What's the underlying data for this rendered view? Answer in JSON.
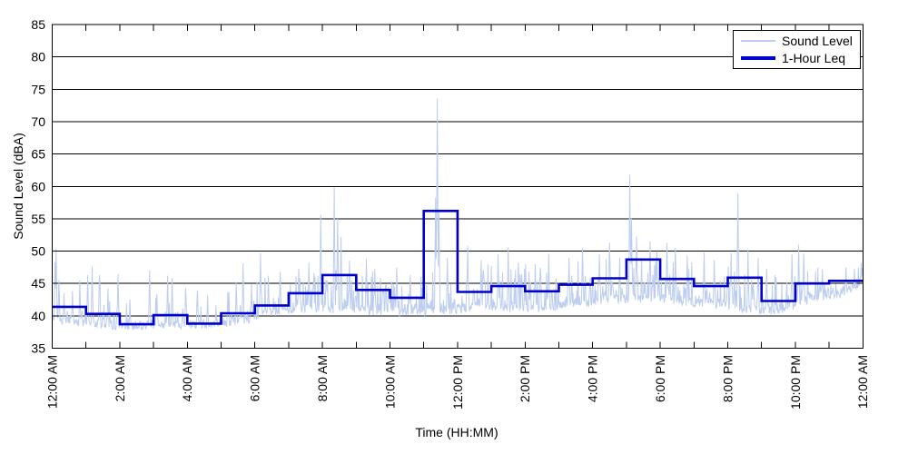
{
  "chart_data": {
    "type": "line",
    "title": "",
    "xlabel": "Time (HH:MM)",
    "ylabel": "Sound Level (dBA)",
    "ylim": [
      35,
      85
    ],
    "xlim_hours": [
      0,
      24
    ],
    "y_ticks": [
      35,
      40,
      45,
      50,
      55,
      60,
      65,
      70,
      75,
      80,
      85
    ],
    "x_major_tick_interval_hours": 2,
    "x_minor_tick_interval_hours": 1,
    "x_major_tick_labels": [
      "12:00 AM",
      "2:00 AM",
      "4:00 AM",
      "6:00 AM",
      "8:00 AM",
      "10:00 AM",
      "12:00 PM",
      "2:00 PM",
      "4:00 PM",
      "6:00 PM",
      "8:00 PM",
      "10:00 PM",
      "12:00 AM"
    ],
    "grid": "horizontal-only",
    "legend_position": "top-right",
    "colors": {
      "sound_level_trace": "#bccdf0",
      "one_hour_leq": "#0000cc",
      "axis": "#000000",
      "background": "#ffffff"
    },
    "series": [
      {
        "name": "Sound Level",
        "type": "noisy-trace",
        "samples_per_hour": 60,
        "baseline_curve": [
          [
            0,
            38.9
          ],
          [
            0.5,
            38.6
          ],
          [
            1,
            38.3
          ],
          [
            1.5,
            38.1
          ],
          [
            2,
            37.8
          ],
          [
            3,
            37.9
          ],
          [
            4,
            37.8
          ],
          [
            5,
            38.2
          ],
          [
            5.8,
            38.8
          ],
          [
            6.3,
            39.5
          ],
          [
            7,
            40.3
          ],
          [
            8,
            40.4
          ],
          [
            9,
            40.2
          ],
          [
            10,
            39.8
          ],
          [
            11,
            39.9
          ],
          [
            12,
            40.3
          ],
          [
            13,
            40.8
          ],
          [
            14,
            40.3
          ],
          [
            15,
            40.8
          ],
          [
            16,
            41.3
          ],
          [
            17,
            41.9
          ],
          [
            18,
            41.9
          ],
          [
            19,
            41.3
          ],
          [
            20,
            40.9
          ],
          [
            21,
            39.9
          ],
          [
            21.5,
            40.3
          ],
          [
            22,
            40.9
          ],
          [
            22.5,
            42.0
          ],
          [
            23,
            42.6
          ],
          [
            23.2,
            42.4
          ],
          [
            23.6,
            43.4
          ],
          [
            24,
            44.6
          ]
        ],
        "spread_per_hour": [
          5.5,
          5.5,
          4.5,
          5,
          3.5,
          5,
          5.5,
          6,
          6.5,
          6,
          5.5,
          5.5,
          6.5,
          6.5,
          6.5,
          6.5,
          6.5,
          6.5,
          6.5,
          6,
          6.5,
          5.5,
          5,
          3.5
        ],
        "burst_prob_per_hour": [
          0.32,
          0.3,
          0.22,
          0.25,
          0.2,
          0.3,
          0.5,
          0.55,
          0.6,
          0.55,
          0.5,
          0.45,
          0.6,
          0.6,
          0.6,
          0.6,
          0.62,
          0.62,
          0.62,
          0.58,
          0.6,
          0.5,
          0.5,
          0.55
        ],
        "spikes": [
          [
            0.08,
            48.3
          ],
          [
            0.12,
            50.4
          ],
          [
            0.2,
            45.5
          ],
          [
            0.35,
            43.5
          ],
          [
            0.6,
            43.8
          ],
          [
            0.82,
            45.5
          ],
          [
            1.05,
            46.3
          ],
          [
            1.18,
            47.6
          ],
          [
            1.4,
            46.3
          ],
          [
            1.65,
            44.2
          ],
          [
            1.95,
            46.5
          ],
          [
            2.3,
            42.5
          ],
          [
            2.88,
            47.0
          ],
          [
            3.1,
            43.4
          ],
          [
            3.42,
            46.2
          ],
          [
            3.55,
            45.8
          ],
          [
            3.95,
            44.3
          ],
          [
            4.3,
            43.9
          ],
          [
            4.6,
            43.2
          ],
          [
            5.2,
            43.6
          ],
          [
            5.45,
            45.2
          ],
          [
            5.65,
            48.1
          ],
          [
            5.9,
            44.9
          ],
          [
            6.17,
            49.7
          ],
          [
            6.4,
            46.2
          ],
          [
            6.75,
            46.8
          ],
          [
            7.3,
            47.3
          ],
          [
            7.6,
            48.2
          ],
          [
            7.95,
            55.6
          ],
          [
            8.35,
            59.9
          ],
          [
            8.45,
            55.0
          ],
          [
            8.55,
            52.2
          ],
          [
            8.8,
            48.5
          ],
          [
            9.3,
            48.8
          ],
          [
            9.55,
            47.2
          ],
          [
            10.2,
            47.5
          ],
          [
            10.6,
            46.3
          ],
          [
            11.35,
            58.3
          ],
          [
            11.4,
            73.6
          ],
          [
            11.45,
            56.0
          ],
          [
            11.7,
            49.0
          ],
          [
            12.3,
            50.8
          ],
          [
            12.7,
            48.6
          ],
          [
            13.2,
            49.5
          ],
          [
            13.5,
            50.6
          ],
          [
            13.8,
            48.2
          ],
          [
            14.3,
            48.0
          ],
          [
            14.7,
            49.6
          ],
          [
            15.3,
            49.0
          ],
          [
            15.7,
            50.4
          ],
          [
            16.2,
            49.5
          ],
          [
            16.5,
            51.3
          ],
          [
            16.8,
            49.0
          ],
          [
            17.1,
            61.8
          ],
          [
            17.15,
            55.0
          ],
          [
            17.3,
            52.3
          ],
          [
            17.7,
            51.5
          ],
          [
            17.9,
            50.0
          ],
          [
            18.2,
            51.3
          ],
          [
            18.45,
            50.5
          ],
          [
            18.8,
            49.3
          ],
          [
            19.3,
            49.8
          ],
          [
            19.6,
            48.6
          ],
          [
            20.1,
            49.7
          ],
          [
            20.3,
            58.9
          ],
          [
            20.6,
            50.2
          ],
          [
            20.9,
            49.0
          ],
          [
            21.15,
            47.3
          ],
          [
            21.9,
            49.5
          ],
          [
            22.1,
            51.0
          ],
          [
            22.25,
            49.6
          ],
          [
            22.8,
            47.2
          ],
          [
            23.5,
            47.5
          ],
          [
            23.95,
            48.2
          ]
        ]
      },
      {
        "name": "1-Hour Leq",
        "type": "step",
        "hourly_values": [
          41.4,
          40.3,
          38.7,
          40.1,
          38.8,
          40.4,
          41.6,
          43.5,
          46.3,
          44.0,
          42.8,
          56.2,
          43.7,
          44.6,
          43.8,
          44.8,
          45.8,
          48.7,
          45.7,
          44.6,
          45.9,
          42.3,
          45.0,
          45.4
        ]
      }
    ]
  }
}
